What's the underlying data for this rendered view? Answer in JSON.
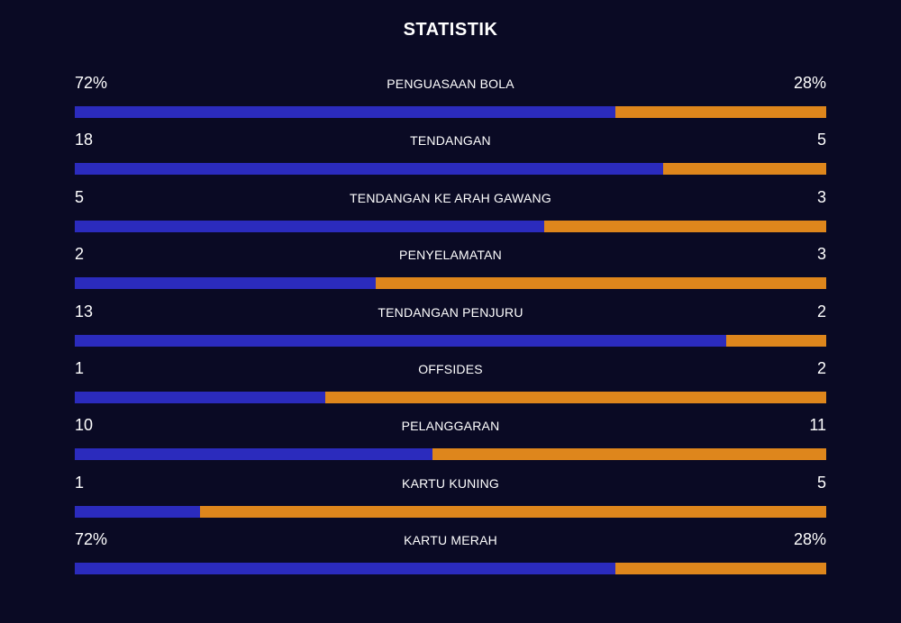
{
  "title": "STATISTIK",
  "colors": {
    "background": "#0a0a24",
    "home": "#2b2bbd",
    "away": "#de861c"
  },
  "stats": [
    {
      "label": "PENGUASAAN BOLA",
      "home": "72%",
      "away": "28%",
      "home_share": 0.72
    },
    {
      "label": "TENDANGAN",
      "home": "18",
      "away": "5",
      "home_share": 0.783
    },
    {
      "label": "TENDANGAN KE ARAH GAWANG",
      "home": "5",
      "away": "3",
      "home_share": 0.625
    },
    {
      "label": "PENYELAMATAN",
      "home": "2",
      "away": "3",
      "home_share": 0.4
    },
    {
      "label": "TENDANGAN PENJURU",
      "home": "13",
      "away": "2",
      "home_share": 0.867
    },
    {
      "label": "OFFSIDES",
      "home": "1",
      "away": "2",
      "home_share": 0.333
    },
    {
      "label": "PELANGGARAN",
      "home": "10",
      "away": "11",
      "home_share": 0.476
    },
    {
      "label": "KARTU KUNING",
      "home": "1",
      "away": "5",
      "home_share": 0.167
    },
    {
      "label": "KARTU MERAH",
      "home": "72%",
      "away": "28%",
      "home_share": 0.72
    }
  ]
}
